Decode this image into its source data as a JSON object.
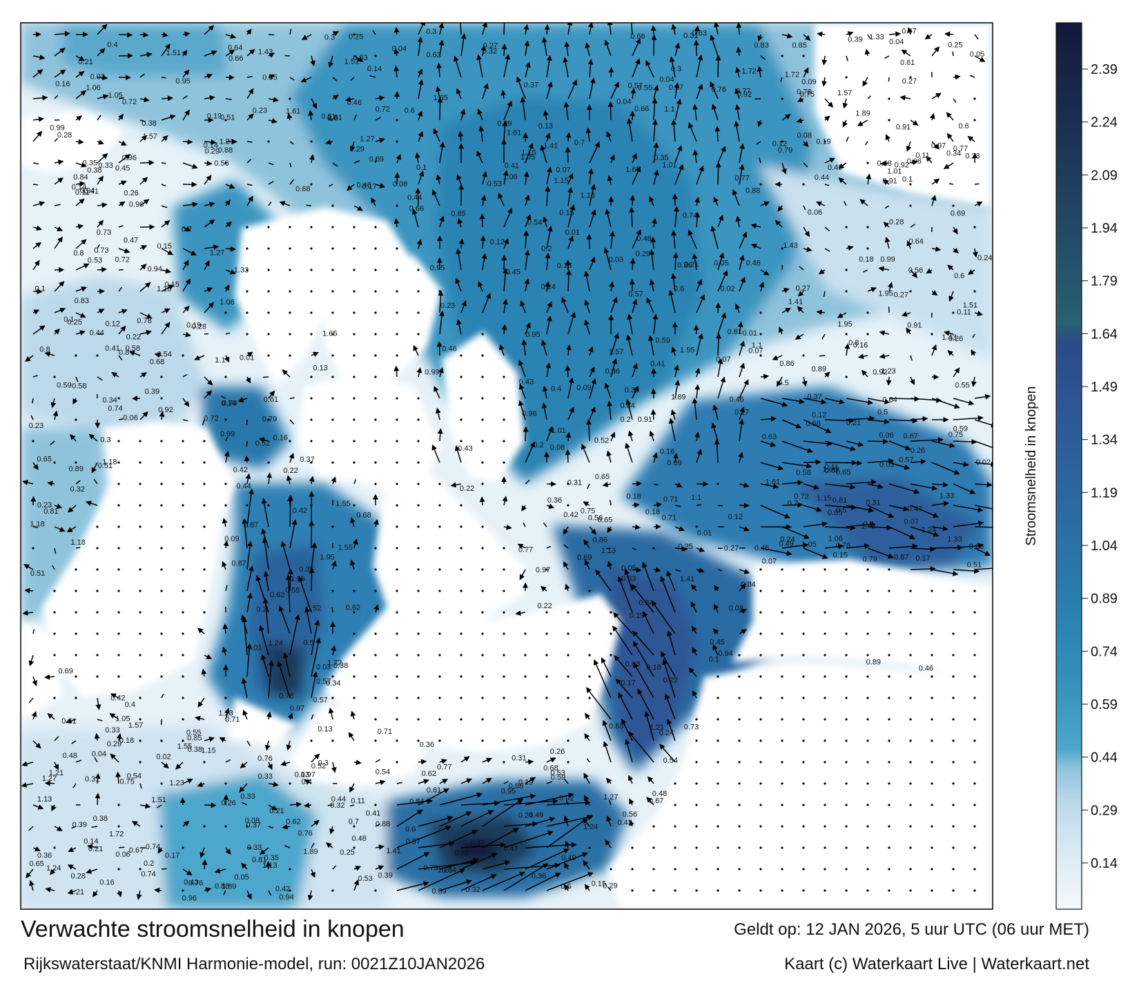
{
  "title": "Verwachte stroomsnelheid in knopen",
  "model": "Rijkswaterstaat/KNMI Harmonie-model, run: 0021Z10JAN2026",
  "valid": "Geldt op: 12 JAN 2026, 5 uur UTC (06 uur MET)",
  "credit": "Kaart (c) Waterkaart Live | Waterkaart.net",
  "colorbar": {
    "label": "Stroomsnelheid in knopen",
    "ticks": [
      "2.39",
      "2.24",
      "2.09",
      "1.94",
      "1.79",
      "1.64",
      "1.49",
      "1.34",
      "1.19",
      "1.04",
      "0.89",
      "0.74",
      "0.59",
      "0.44",
      "0.29",
      "0.14"
    ],
    "colors": [
      "#f3f8fb",
      "#dcebf3",
      "#bcd9ea",
      "#8fc3dc",
      "#5aa9cc",
      "#3895bd",
      "#2b86b3",
      "#2a78ab",
      "#2c6aa2",
      "#2f5d99",
      "#2f5190",
      "#2c4a84",
      "#285e72",
      "#234e66",
      "#1e3b5a",
      "#1a2b4c",
      "#15193a"
    ]
  },
  "speed_labels": [
    "0.14",
    "0.31",
    "0.23",
    "0.28",
    "0.37",
    "0.35",
    "0.41",
    "0.54",
    "0.57",
    "0.26",
    "0.21",
    "0.13",
    "0.19",
    "0.27",
    "0.12",
    "0.16",
    "0.09",
    "0.1",
    "0.11",
    "0.15",
    "0.24",
    "0.18",
    "0.2",
    "0.22",
    "0.29",
    "0.33",
    "0.36",
    "0.25",
    "0.43",
    "0.47",
    "0.5",
    "0.61",
    "0.07",
    "0.08",
    "0.05",
    "0.3",
    "0.39",
    "0.48",
    "0.65",
    "0.77",
    "0.72",
    "0.8",
    "0.6",
    "0.44",
    "0.42",
    "0.38",
    "0.4",
    "0.46",
    "0.17",
    "0.06",
    "0.03",
    "0.04",
    "0.01",
    "0.02",
    "0.32",
    "0.34",
    "0.45",
    "0.52",
    "0.53",
    "0.56",
    "0.58",
    "0.62",
    "0.64",
    "0.67",
    "0.69",
    "0.7",
    "0.74",
    "0.76",
    "0.78",
    "0.81",
    "0.83",
    "0.85",
    "0.86",
    "0.89",
    "0.91",
    "0.94",
    "0.96",
    "1.01",
    "1.06",
    "1.1",
    "1.13",
    "1.18",
    "1.21",
    "1.24",
    "1.33",
    "1.41",
    "1.43",
    "1.51",
    "1.55",
    "1.57",
    "1.61",
    "1.65",
    "1.72",
    "1.89",
    "1.95",
    "0.75",
    "0.68",
    "0.79",
    "0.73",
    "0.84",
    "0.87",
    "0.55",
    "0.63",
    "0.49",
    "0.51",
    "0.59",
    "0.71",
    "0.66",
    "0.88",
    "0.97",
    "0.92",
    "0.95",
    "1.05",
    "1.15",
    "1.23",
    "1.27",
    "0.99"
  ]
}
